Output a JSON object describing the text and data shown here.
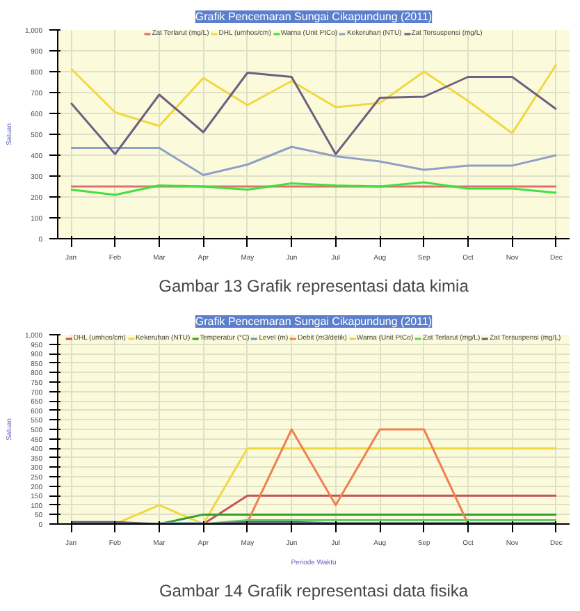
{
  "chart_data": [
    {
      "type": "line",
      "title": "Grafik Pencemaran Sungai Cikapundung (2011)",
      "ylabel": "Satuan",
      "annotations": [
        "Gambar 13 Grafik representasi data kimia"
      ],
      "categories": [
        "Jan",
        "Feb",
        "Mar",
        "Apr",
        "May",
        "Jun",
        "Jul",
        "Aug",
        "Sep",
        "Oct",
        "Nov",
        "Dec"
      ],
      "ylim": [
        0,
        1000
      ],
      "yticks": [
        0,
        100,
        200,
        300,
        400,
        500,
        600,
        700,
        800,
        900,
        {
          "value": 1000,
          "label": "1,000"
        }
      ],
      "grid": true,
      "legend": "top",
      "marker": "none",
      "line_style": "solid",
      "series": [
        {
          "name": "Zat Terlarut (mg/L)",
          "color": "#e07070",
          "values": [
            250,
            250,
            250,
            250,
            250,
            250,
            250,
            250,
            250,
            250,
            250,
            250
          ]
        },
        {
          "name": "DHL (umhos/cm)",
          "color": "#f0d840",
          "values": [
            815,
            605,
            540,
            770,
            640,
            755,
            630,
            650,
            800,
            660,
            505,
            835
          ]
        },
        {
          "name": "Warna (Unit PtCo)",
          "color": "#40e040",
          "values": [
            235,
            210,
            255,
            250,
            235,
            265,
            255,
            250,
            270,
            240,
            240,
            220
          ]
        },
        {
          "name": "Kekeruhan (NTU)",
          "color": "#8fa0c8",
          "values": [
            435,
            435,
            435,
            305,
            355,
            440,
            395,
            370,
            330,
            350,
            350,
            400
          ]
        },
        {
          "name": "Zat Tersuspensi (mg/L)",
          "color": "#706080",
          "values": [
            650,
            405,
            690,
            510,
            795,
            775,
            405,
            675,
            680,
            775,
            775,
            620
          ]
        }
      ]
    },
    {
      "type": "line",
      "title": "Grafik Pencemaran Sungai Cikapundung (2011)",
      "ylabel": "Satuan",
      "xlabel": "Periode Waktu",
      "annotations": [
        "Gambar 14 Grafik representasi data fisika"
      ],
      "categories": [
        "Jan",
        "Feb",
        "Mar",
        "Apr",
        "May",
        "Jun",
        "Jul",
        "Aug",
        "Sep",
        "Oct",
        "Nov",
        "Dec"
      ],
      "ylim": [
        0,
        1000
      ],
      "yticks": [
        0,
        50,
        100,
        150,
        200,
        250,
        300,
        350,
        400,
        450,
        500,
        550,
        600,
        650,
        700,
        750,
        800,
        850,
        900,
        950,
        {
          "value": 1000,
          "label": "1,000"
        }
      ],
      "grid": true,
      "legend": "top",
      "marker": "none",
      "line_style": "solid",
      "series": [
        {
          "name": "DHL (umhos/cm)",
          "color": "#c85060",
          "values": [
            null,
            null,
            null,
            0,
            150,
            150,
            150,
            150,
            150,
            150,
            150,
            150
          ]
        },
        {
          "name": "Kekeruhan (NTU)",
          "color": "#f0d840",
          "values": [
            0,
            0,
            100,
            0,
            400,
            400,
            400,
            400,
            400,
            400,
            400,
            400
          ]
        },
        {
          "name": "Temperatur (°C)",
          "color": "#30a030",
          "values": [
            5,
            5,
            0,
            50,
            50,
            50,
            50,
            50,
            50,
            50,
            50,
            50
          ]
        },
        {
          "name": "Level (m)",
          "color": "#7090d0",
          "values": [
            null,
            null,
            5,
            5,
            null,
            null,
            null,
            null,
            null,
            null,
            null,
            null
          ]
        },
        {
          "name": "Debit (m3/detik)",
          "color": "#f08050",
          "values": [
            null,
            null,
            0,
            0,
            10,
            500,
            100,
            500,
            500,
            0,
            0,
            0
          ]
        },
        {
          "name": "Warna (Unit PtCo)",
          "color": "#e6c870",
          "values": [
            null,
            null,
            null,
            null,
            null,
            null,
            null,
            null,
            null,
            null,
            null,
            null
          ]
        },
        {
          "name": "Zat Terlarut (mg/L)",
          "color": "#60d060",
          "values": [
            0,
            0,
            0,
            0,
            20,
            20,
            20,
            20,
            20,
            20,
            20,
            20
          ]
        },
        {
          "name": "Zat Tersuspensi (mg/L)",
          "color": "#606080",
          "values": [
            10,
            10,
            0,
            0,
            10,
            10,
            5,
            5,
            5,
            5,
            5,
            5
          ]
        }
      ]
    }
  ]
}
